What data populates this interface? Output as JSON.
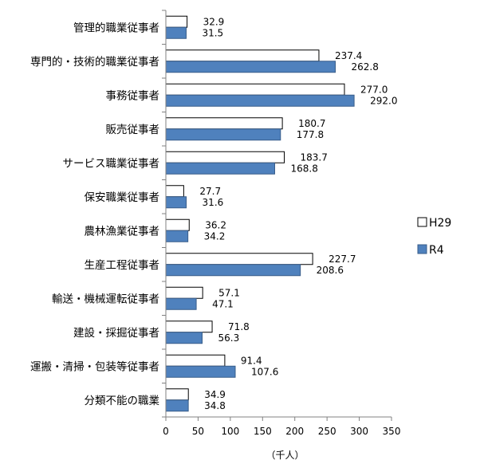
{
  "chart_data": {
    "type": "bar",
    "orientation": "horizontal",
    "categories": [
      "管理的職業従事者",
      "専門的・技術的職業従事者",
      "事務従事者",
      "販売従事者",
      "サービス職業従事者",
      "保安職業従事者",
      "農林漁業従事者",
      "生産工程従事者",
      "輸送・機械運転従事者",
      "建設・採掘従事者",
      "運搬・清掃・包装等従事者",
      "分類不能の職業"
    ],
    "series": [
      {
        "name": "H29",
        "color": "#ffffff",
        "values": [
          32.9,
          237.4,
          277.0,
          180.7,
          183.7,
          27.7,
          36.2,
          227.7,
          57.1,
          71.8,
          91.4,
          34.9
        ],
        "labels": [
          "32.9",
          "237.4",
          "277.0",
          "180.7",
          "183.7",
          "27.7",
          "36.2",
          "227.7",
          "57.1",
          "71.8",
          "91.4",
          "34.9"
        ]
      },
      {
        "name": "R4",
        "color": "#4f81bd",
        "values": [
          31.5,
          262.8,
          292.0,
          177.8,
          168.8,
          31.6,
          34.2,
          208.6,
          47.1,
          56.3,
          107.6,
          34.8
        ],
        "labels": [
          "31.5",
          "262.8",
          "292.0",
          "177.8",
          "168.8",
          "31.6",
          "34.2",
          "208.6",
          "47.1",
          "56.3",
          "107.6",
          "34.8"
        ]
      }
    ],
    "xlim": [
      0,
      350
    ],
    "x_ticks": [
      "0",
      "50",
      "100",
      "150",
      "200",
      "250",
      "300",
      "350"
    ],
    "x_tick_values": [
      0,
      50,
      100,
      150,
      200,
      250,
      300,
      350
    ],
    "xlabel": "（千人）",
    "legend": "right",
    "grid": false
  }
}
